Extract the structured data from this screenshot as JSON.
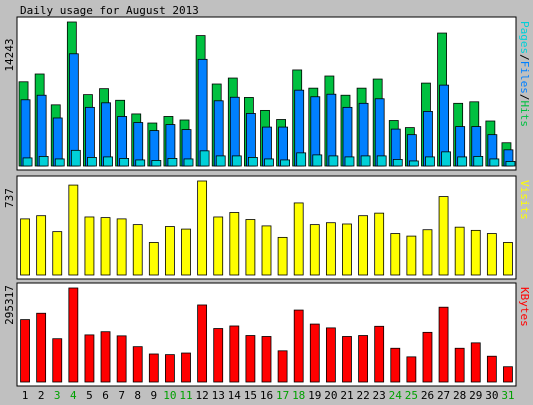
{
  "chart_data": {
    "type": "bar",
    "title": "Daily usage for August 2013",
    "categories": [
      "1",
      "2",
      "3",
      "4",
      "5",
      "6",
      "7",
      "8",
      "9",
      "10",
      "11",
      "12",
      "13",
      "14",
      "15",
      "16",
      "17",
      "18",
      "19",
      "20",
      "21",
      "22",
      "23",
      "24",
      "25",
      "26",
      "27",
      "28",
      "29",
      "30",
      "31"
    ],
    "weekend_days": [
      "3",
      "4",
      "10",
      "11",
      "17",
      "18",
      "24",
      "25",
      "31"
    ],
    "colors": {
      "background": "#c0c0c0",
      "panel": "#ffffff",
      "hits": "#00c040",
      "files": "#0080ff",
      "pages": "#00d0d8",
      "visits": "#ffff00",
      "kbytes": "#ff0000",
      "weekday_label": "#000000",
      "weekend_label": "#00a000",
      "axis_label": "#000000"
    },
    "panels": [
      {
        "name": "hits-files-pages",
        "ymax_label": "14243",
        "ymax": 14243,
        "legend": [
          "Pages",
          "/",
          "Files",
          "/",
          "Hits"
        ],
        "legend_colors": [
          "#00d0d8",
          "#000000",
          "#0080ff",
          "#000000",
          "#00c040"
        ],
        "series": [
          {
            "name": "Hits",
            "values": [
              8330,
              9100,
              6050,
              14243,
              7060,
              7650,
              6500,
              5150,
              4250,
              4900,
              4550,
              12900,
              8110,
              8700,
              6780,
              5500,
              4600,
              9500,
              7700,
              8900,
              7000,
              7700,
              8600,
              4500,
              3800,
              8200,
              13150,
              6200,
              6350,
              4450,
              2300
            ]
          },
          {
            "name": "Files",
            "values": [
              6550,
              7000,
              4750,
              11100,
              5800,
              6250,
              4900,
              4300,
              3500,
              4100,
              3600,
              10550,
              6450,
              6800,
              5200,
              3850,
              3850,
              7500,
              6850,
              7100,
              5800,
              6200,
              6650,
              3650,
              3100,
              5400,
              8000,
              3900,
              3900,
              3100,
              1600
            ]
          },
          {
            "name": "Pages",
            "values": [
              800,
              950,
              700,
              1550,
              850,
              900,
              750,
              600,
              550,
              750,
              700,
              1500,
              1000,
              1000,
              850,
              700,
              600,
              1300,
              1100,
              1000,
              900,
              1000,
              1000,
              650,
              500,
              900,
              1400,
              900,
              950,
              700,
              450
            ]
          }
        ]
      },
      {
        "name": "visits",
        "ymax_label": "737",
        "ymax": 737,
        "legend": [
          "Visits"
        ],
        "legend_colors": [
          "#ffff00"
        ],
        "series": [
          {
            "name": "Visits",
            "values": [
              440,
              465,
              340,
              705,
              455,
              450,
              440,
              395,
              255,
              380,
              360,
              737,
              455,
              490,
              435,
              385,
              295,
              565,
              395,
              410,
              400,
              465,
              485,
              325,
              305,
              355,
              615,
              375,
              350,
              325,
              255
            ]
          }
        ]
      },
      {
        "name": "kbytes",
        "ymax_label": "295317",
        "ymax": 295317,
        "legend": [
          "KBytes"
        ],
        "legend_colors": [
          "#ff0000"
        ],
        "series": [
          {
            "name": "KBytes",
            "values": [
              196000,
              216000,
              136000,
              295317,
              148000,
              158000,
              145000,
              111000,
              88000,
              86000,
              91000,
              242000,
              168000,
              176000,
              146000,
              143000,
              98000,
              226000,
              182000,
              170000,
              143000,
              146000,
              175000,
              106000,
              79000,
              156000,
              235000,
              106000,
              123000,
              81000,
              48000
            ]
          }
        ]
      }
    ]
  }
}
